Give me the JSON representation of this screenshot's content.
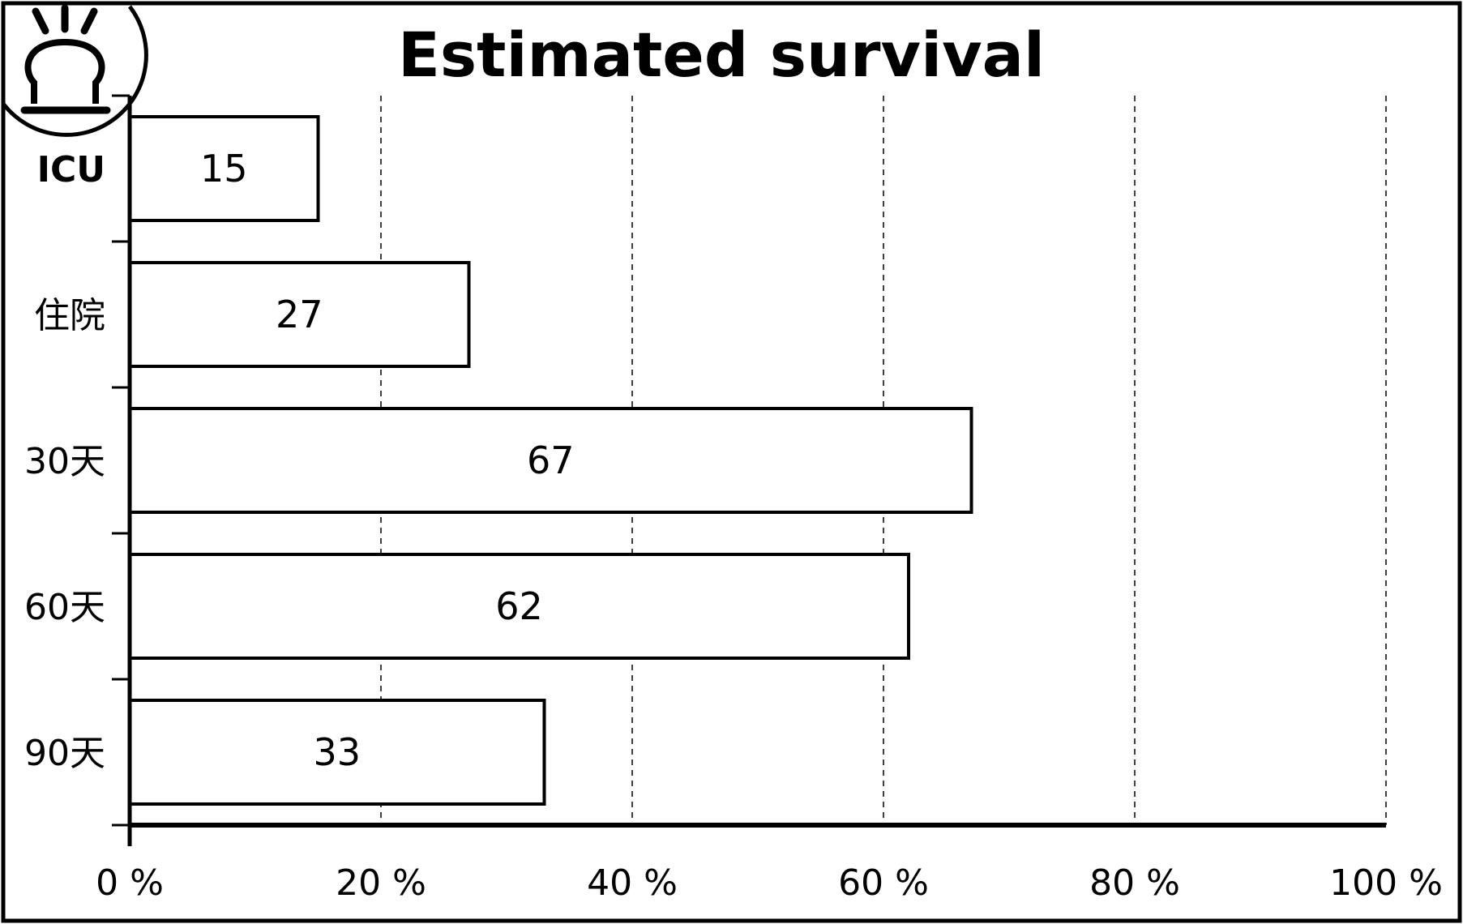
{
  "chart_data": {
    "type": "bar",
    "orientation": "horizontal",
    "title": "Estimated survival",
    "categories": [
      "ICU",
      "住院",
      "30天",
      "60天",
      "90天"
    ],
    "values": [
      15,
      27,
      67,
      62,
      33
    ],
    "data_labels": [
      "15",
      "27",
      "67",
      "62",
      "33"
    ],
    "xlim": [
      0,
      100
    ],
    "x_ticks": [
      0,
      20,
      40,
      60,
      80,
      100
    ],
    "x_tick_labels": [
      "0 %",
      "20 %",
      "40 %",
      "60 %",
      "80 %",
      "100 %"
    ],
    "xlabel": "",
    "ylabel": "",
    "grid": "vertical dashed",
    "legend": "none",
    "bar_fill": "#ffffff",
    "bar_stroke": "#000000",
    "corner_icon": "alarm-light-icon"
  }
}
